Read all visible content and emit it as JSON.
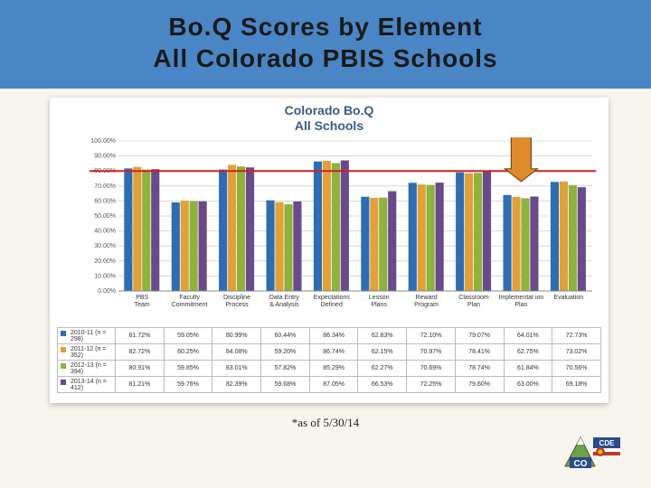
{
  "title_line1": "Bo.Q Scores by Element",
  "title_line2": "All Colorado PBIS Schools",
  "chart_title_line1": "Colorado Bo.Q",
  "chart_title_line2": "All Schools",
  "footnote": "*as of 5/30/14",
  "chart": {
    "type": "bar-grouped",
    "ylim": [
      0,
      100
    ],
    "ytick_step": 10,
    "ytick_format_suffix": ".00%",
    "reference_line_y": 80,
    "reference_line_color": "#d42020",
    "background_color": "#ffffff",
    "grid_color": "#bfbfbf",
    "categories": [
      "PBS Team",
      "Faculty Commitment",
      "Discipline Process",
      "Data Entry & Analysis",
      "Expectations Defined",
      "Lesson Plans",
      "Reward Program",
      "Classroom Plan",
      "Implementat ion Plan",
      "Evaluation"
    ],
    "series": [
      {
        "label": "2010-11 (n = 298)",
        "color": "#2f6db2",
        "values": [
          81.72,
          59.05,
          80.99,
          60.44,
          86.34,
          62.83,
          72.1,
          79.07,
          64.01,
          72.73
        ]
      },
      {
        "label": "2011-12 (n = 352)",
        "color": "#e0a13b",
        "values": [
          82.72,
          60.25,
          84.08,
          59.2,
          86.74,
          62.15,
          70.97,
          78.41,
          62.75,
          73.02
        ]
      },
      {
        "label": "2012-13 (n = 394)",
        "color": "#8fb23e",
        "values": [
          80.91,
          59.85,
          83.01,
          57.82,
          85.29,
          62.27,
          70.69,
          78.74,
          61.84,
          70.56
        ]
      },
      {
        "label": "2013-14 (n = 412)",
        "color": "#6b4a8a",
        "values": [
          81.21,
          59.76,
          82.39,
          59.68,
          87.05,
          66.53,
          72.25,
          79.6,
          63.0,
          69.18
        ]
      }
    ],
    "arrow_annotation": {
      "category_index": 8,
      "color_fill": "#e08a2e",
      "color_stroke": "#7a4a15"
    }
  },
  "logo": {
    "text_cde": "CDE",
    "text_co": "CO",
    "mountain_color": "#6fa04a",
    "flag_blue": "#2a4b8d",
    "flag_red": "#c0392b",
    "flag_gold": "#f1c40f"
  }
}
